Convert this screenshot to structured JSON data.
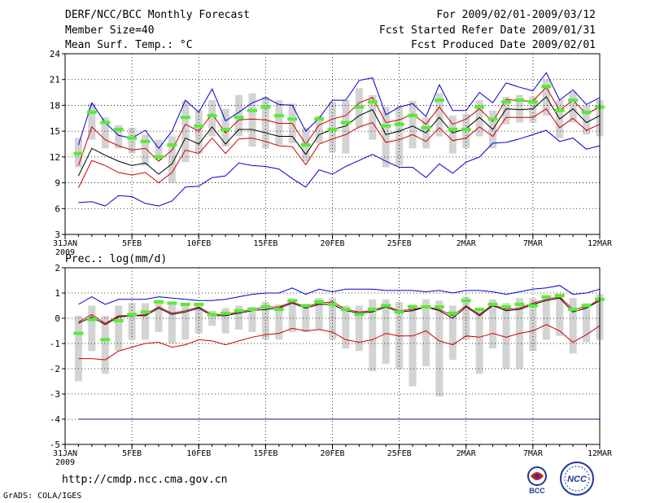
{
  "header": {
    "title": "DERF/NCC/BCC Monthly Forecast",
    "member_size": "Member Size=40",
    "variable_top": "Mean Surf. Temp.: °C",
    "period": "For 2009/02/01-2009/03/12",
    "started": "Fcst Started Refer Date 2009/01/31",
    "produced": "Fcst Produced Date 2009/02/01"
  },
  "footer": {
    "url": "http://cmdp.ncc.cma.gov.cn",
    "credit": "GrADS: COLA/IGES",
    "logo_left_text": "BCC",
    "logo_right_text": "NCC"
  },
  "colors": {
    "max_line": "#0000cc",
    "pct_line": "#cc0000",
    "mean_line": "#000000",
    "box": "#d3d3d3",
    "climatology": "#55ee33",
    "grid": "#000000"
  },
  "chart_data": [
    {
      "type": "box-line",
      "title": "Mean Surf. Temp.: °C",
      "x_tick_labels": [
        "31JAN\n2009",
        "5FEB",
        "10FEB",
        "15FEB",
        "20FEB",
        "25FEB",
        "2MAR",
        "7MAR",
        "12MAR"
      ],
      "x_tick_days": [
        0,
        5,
        10,
        15,
        20,
        25,
        30,
        35,
        40
      ],
      "ylim": [
        3,
        24
      ],
      "yticks": [
        3,
        6,
        9,
        12,
        15,
        18,
        21,
        24
      ],
      "days": [
        1,
        2,
        3,
        4,
        5,
        6,
        7,
        8,
        9,
        10,
        11,
        12,
        13,
        14,
        15,
        16,
        17,
        18,
        19,
        20,
        21,
        22,
        23,
        24,
        25,
        26,
        27,
        28,
        29,
        30,
        31,
        32,
        33,
        34,
        35,
        36,
        37,
        38,
        39,
        40
      ],
      "series": [
        {
          "name": "max",
          "values": [
            13.4,
            18.3,
            16.0,
            14.5,
            14.2,
            15.1,
            13.0,
            15.0,
            18.6,
            17.2,
            19.9,
            16.2,
            17.2,
            18.3,
            18.9,
            18.1,
            18.0,
            15.0,
            16.5,
            18.6,
            18.6,
            20.9,
            21.2,
            16.9,
            17.8,
            18.2,
            16.7,
            20.4,
            17.4,
            17.4,
            19.5,
            18.3,
            20.6,
            20.1,
            19.7,
            21.8,
            18.6,
            19.8,
            18.1,
            18.9
          ]
        },
        {
          "name": "pct_high",
          "values": [
            11.0,
            15.5,
            14.0,
            13.3,
            12.8,
            13.0,
            11.5,
            12.8,
            15.8,
            15.0,
            17.0,
            14.8,
            16.3,
            16.4,
            16.3,
            15.9,
            15.9,
            13.5,
            15.7,
            16.4,
            16.8,
            18.3,
            18.9,
            16.0,
            16.3,
            17.0,
            15.8,
            17.8,
            15.8,
            16.4,
            17.6,
            16.1,
            18.7,
            18.5,
            18.5,
            20.1,
            17.4,
            18.6,
            17.0,
            17.8
          ]
        },
        {
          "name": "mean",
          "values": [
            9.8,
            13.0,
            12.2,
            11.5,
            11.0,
            11.3,
            10.0,
            11.2,
            14.2,
            13.5,
            15.5,
            13.5,
            15.2,
            15.2,
            14.8,
            14.4,
            14.4,
            12.3,
            14.6,
            15.2,
            15.6,
            16.8,
            17.5,
            14.6,
            15.0,
            15.6,
            14.8,
            16.6,
            14.8,
            15.3,
            16.6,
            15.2,
            17.6,
            17.5,
            17.6,
            19.0,
            16.4,
            17.6,
            16.0,
            16.8
          ]
        },
        {
          "name": "pct_low",
          "values": [
            8.4,
            11.6,
            11.0,
            10.2,
            9.9,
            10.2,
            9.0,
            10.2,
            12.8,
            12.4,
            14.2,
            12.4,
            14.1,
            14.2,
            13.8,
            13.3,
            13.2,
            11.1,
            13.5,
            14.1,
            14.6,
            15.5,
            16.0,
            13.7,
            14.0,
            14.6,
            13.8,
            15.4,
            13.9,
            14.2,
            15.5,
            14.4,
            16.6,
            16.6,
            16.6,
            17.6,
            15.4,
            16.5,
            15.1,
            15.8
          ]
        },
        {
          "name": "min",
          "values": [
            6.7,
            6.8,
            6.3,
            7.5,
            7.4,
            6.6,
            6.3,
            6.9,
            8.5,
            8.6,
            9.6,
            9.8,
            11.3,
            11.0,
            10.9,
            10.6,
            9.5,
            8.5,
            10.5,
            10.0,
            10.9,
            11.6,
            12.3,
            11.5,
            10.8,
            10.8,
            9.6,
            11.2,
            10.1,
            11.4,
            12.0,
            13.6,
            13.7,
            14.1,
            14.6,
            15.1,
            13.8,
            14.2,
            12.9,
            13.3
          ]
        },
        {
          "name": "box_top",
          "values": [
            14.2,
            18.2,
            16.6,
            15.7,
            15.4,
            14.6,
            14.0,
            14.4,
            18.5,
            17.4,
            18.6,
            17.6,
            19.2,
            19.4,
            19.0,
            18.6,
            18.2,
            15.4,
            16.8,
            18.4,
            18.6,
            20.0,
            19.2,
            17.8,
            17.8,
            18.5,
            16.6,
            19.4,
            16.8,
            17.0,
            18.6,
            17.4,
            19.0,
            19.2,
            19.0,
            21.0,
            18.6,
            19.6,
            18.0,
            18.6
          ]
        },
        {
          "name": "box_bottom",
          "values": [
            10.8,
            14.0,
            13.0,
            13.0,
            12.4,
            11.0,
            11.6,
            9.0,
            11.4,
            12.4,
            14.4,
            13.2,
            14.4,
            13.2,
            13.0,
            13.4,
            13.6,
            11.5,
            13.6,
            12.5,
            12.4,
            15.4,
            14.0,
            10.8,
            11.0,
            13.0,
            13.0,
            14.4,
            12.4,
            13.0,
            14.4,
            13.0,
            15.8,
            16.0,
            16.0,
            16.8,
            14.2,
            16.0,
            14.6,
            14.4
          ]
        },
        {
          "name": "climatology",
          "values": [
            12.4,
            17.2,
            16.0,
            15.2,
            14.2,
            13.8,
            12.0,
            13.4,
            16.6,
            15.6,
            16.8,
            15.2,
            16.6,
            17.4,
            17.8,
            16.8,
            16.4,
            13.4,
            16.4,
            15.2,
            16.0,
            17.8,
            18.4,
            15.6,
            15.8,
            16.8,
            15.4,
            18.6,
            15.2,
            15.2,
            17.8,
            16.4,
            18.4,
            18.6,
            18.4,
            20.2,
            17.4,
            18.6,
            17.2,
            17.8
          ]
        }
      ]
    },
    {
      "type": "box-line",
      "title": "Prec.: log(mm/d)",
      "x_tick_labels": [
        "31JAN\n2009",
        "5FEB",
        "10FEB",
        "15FEB",
        "20FEB",
        "25FEB",
        "2MAR",
        "7MAR",
        "12MAR"
      ],
      "x_tick_days": [
        0,
        5,
        10,
        15,
        20,
        25,
        30,
        35,
        40
      ],
      "ylim": [
        -5,
        2
      ],
      "yticks": [
        -5,
        -4,
        -3,
        -2,
        -1,
        0,
        1,
        2
      ],
      "days": [
        1,
        2,
        3,
        4,
        5,
        6,
        7,
        8,
        9,
        10,
        11,
        12,
        13,
        14,
        15,
        16,
        17,
        18,
        19,
        20,
        21,
        22,
        23,
        24,
        25,
        26,
        27,
        28,
        29,
        30,
        31,
        32,
        33,
        34,
        35,
        36,
        37,
        38,
        39,
        40
      ],
      "series": [
        {
          "name": "max",
          "values": [
            0.55,
            0.85,
            0.55,
            0.75,
            0.75,
            0.75,
            0.85,
            0.8,
            0.75,
            0.7,
            0.7,
            0.75,
            0.85,
            0.95,
            1.0,
            1.0,
            1.2,
            0.95,
            1.15,
            1.05,
            1.15,
            1.15,
            1.15,
            1.1,
            1.1,
            1.1,
            1.05,
            1.1,
            1.0,
            1.1,
            1.1,
            1.05,
            0.95,
            1.05,
            1.15,
            1.2,
            1.3,
            0.95,
            1.0,
            1.15
          ]
        },
        {
          "name": "pct_high",
          "values": [
            -0.15,
            0.15,
            -0.2,
            0.1,
            0.1,
            0.15,
            0.45,
            0.2,
            0.3,
            0.45,
            0.15,
            0.15,
            0.25,
            0.35,
            0.45,
            0.45,
            0.65,
            0.45,
            0.6,
            0.65,
            0.35,
            0.25,
            0.3,
            0.5,
            0.3,
            0.35,
            0.45,
            0.35,
            0.1,
            0.5,
            0.15,
            0.55,
            0.35,
            0.4,
            0.6,
            0.75,
            0.85,
            0.35,
            0.45,
            0.75
          ]
        },
        {
          "name": "mean",
          "values": [
            -0.2,
            0.05,
            -0.25,
            0.05,
            0.1,
            0.1,
            0.4,
            0.15,
            0.25,
            0.4,
            0.1,
            0.1,
            0.2,
            0.3,
            0.35,
            0.4,
            0.6,
            0.4,
            0.55,
            0.55,
            0.3,
            0.2,
            0.25,
            0.45,
            0.25,
            0.3,
            0.45,
            0.3,
            0.0,
            0.45,
            0.1,
            0.5,
            0.3,
            0.35,
            0.55,
            0.7,
            0.8,
            0.25,
            0.4,
            0.7
          ]
        },
        {
          "name": "pct_low",
          "values": [
            -1.6,
            -1.6,
            -1.65,
            -1.3,
            -1.15,
            -1.0,
            -0.95,
            -1.15,
            -1.05,
            -0.85,
            -0.9,
            -1.05,
            -0.9,
            -0.75,
            -0.65,
            -0.6,
            -0.4,
            -0.5,
            -0.45,
            -0.55,
            -0.85,
            -0.95,
            -0.85,
            -0.6,
            -0.7,
            -0.7,
            -0.5,
            -0.9,
            -1.05,
            -0.7,
            -0.75,
            -0.6,
            -0.75,
            -0.6,
            -0.5,
            -0.25,
            -0.5,
            -0.95,
            -0.65,
            -0.3
          ]
        },
        {
          "name": "box_top",
          "values": [
            0.1,
            0.5,
            0.1,
            0.5,
            0.6,
            0.6,
            0.7,
            0.55,
            0.55,
            0.5,
            0.3,
            0.4,
            0.5,
            0.45,
            0.65,
            0.55,
            0.75,
            0.55,
            0.8,
            0.8,
            0.5,
            0.5,
            0.75,
            0.75,
            0.65,
            0.55,
            0.75,
            0.7,
            0.5,
            0.85,
            0.4,
            0.75,
            0.6,
            0.8,
            0.8,
            0.8,
            0.9,
            0.8,
            0.6,
            0.95
          ]
        },
        {
          "name": "box_bottom",
          "values": [
            -2.5,
            -1.3,
            -2.2,
            -1.3,
            -0.85,
            -0.85,
            -0.55,
            -1.0,
            -0.85,
            -0.6,
            -0.3,
            -0.6,
            -0.45,
            -0.55,
            -0.85,
            -0.85,
            -0.55,
            -0.55,
            -0.45,
            -0.85,
            -1.2,
            -1.3,
            -2.1,
            -1.8,
            -2.0,
            -2.7,
            -1.9,
            -3.1,
            -1.65,
            -0.85,
            -2.2,
            -1.2,
            -2.0,
            -2.0,
            -1.3,
            -0.85,
            -0.7,
            -1.4,
            -0.95,
            -0.85
          ]
        },
        {
          "name": "climatology",
          "values": [
            -0.6,
            -0.05,
            -0.85,
            -0.1,
            0.15,
            0.25,
            0.65,
            0.6,
            0.55,
            0.55,
            0.15,
            0.2,
            0.3,
            0.35,
            0.45,
            0.35,
            0.7,
            0.5,
            0.65,
            0.55,
            0.35,
            0.15,
            0.35,
            0.5,
            0.25,
            0.45,
            0.45,
            0.45,
            0.2,
            0.7,
            0.35,
            0.55,
            0.45,
            0.55,
            0.5,
            0.85,
            0.9,
            0.35,
            0.5,
            0.75
          ]
        }
      ]
    }
  ]
}
